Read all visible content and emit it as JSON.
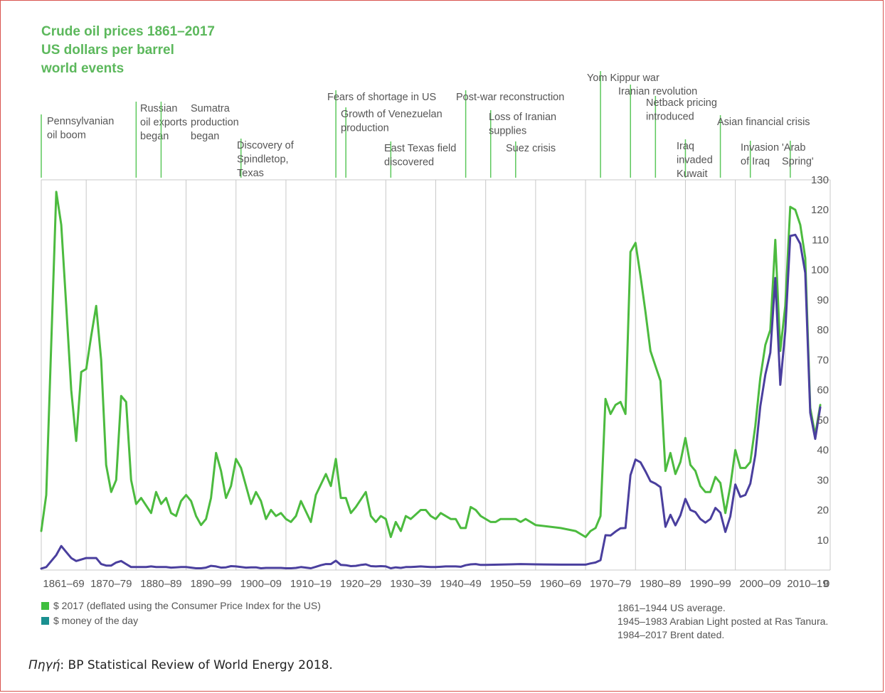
{
  "title_lines": [
    "Crude oil prices 1861–2017",
    "US dollars per barrel",
    "world events"
  ],
  "legend": [
    {
      "label": "$ 2017 (deflated using the Consumer Price Index for the US)",
      "color": "#3fbf3f"
    },
    {
      "label": "$ money of the day",
      "color": "#1a9090"
    }
  ],
  "notes": [
    "1861–1944 US average.",
    "1945–1983 Arabian Light posted at Ras Tanura.",
    "1984–2017 Brent dated."
  ],
  "source": {
    "label": "Πηγή",
    "text": ": BP Statistical Review of World Energy 2018."
  },
  "chart_data": {
    "type": "line",
    "xlim": [
      1861,
      2019
    ],
    "ylim": [
      0,
      130
    ],
    "yticks": [
      10,
      20,
      30,
      40,
      50,
      60,
      70,
      80,
      90,
      100,
      110,
      120,
      130
    ],
    "y_zero_label": "0",
    "xtick_labels": [
      "1861–69",
      "1870–79",
      "1880–89",
      "1890–99",
      "1900–09",
      "1910–19",
      "1920–29",
      "1930–39",
      "1940–49",
      "1950–59",
      "1960–69",
      "1970–79",
      "1980–89",
      "1990–99",
      "2000–09",
      "2010–19"
    ],
    "series": [
      {
        "name": "$ 2017 (deflated using the Consumer Price Index for the US)",
        "color": "#4cbb3f",
        "points": [
          [
            1861,
            13
          ],
          [
            1862,
            25
          ],
          [
            1864,
            126
          ],
          [
            1865,
            115
          ],
          [
            1866,
            88
          ],
          [
            1867,
            60
          ],
          [
            1868,
            43
          ],
          [
            1869,
            66
          ],
          [
            1870,
            67
          ],
          [
            1871,
            78
          ],
          [
            1872,
            88
          ],
          [
            1873,
            70
          ],
          [
            1874,
            35
          ],
          [
            1875,
            26
          ],
          [
            1876,
            30
          ],
          [
            1877,
            58
          ],
          [
            1878,
            56
          ],
          [
            1879,
            30
          ],
          [
            1880,
            22
          ],
          [
            1881,
            24
          ],
          [
            1883,
            19
          ],
          [
            1884,
            26
          ],
          [
            1885,
            22
          ],
          [
            1886,
            24
          ],
          [
            1887,
            19
          ],
          [
            1888,
            18
          ],
          [
            1889,
            23
          ],
          [
            1890,
            25
          ],
          [
            1891,
            23
          ],
          [
            1892,
            18
          ],
          [
            1893,
            15
          ],
          [
            1894,
            17
          ],
          [
            1895,
            24
          ],
          [
            1896,
            39
          ],
          [
            1897,
            33
          ],
          [
            1898,
            24
          ],
          [
            1899,
            28
          ],
          [
            1900,
            37
          ],
          [
            1901,
            34
          ],
          [
            1903,
            22
          ],
          [
            1904,
            26
          ],
          [
            1905,
            23
          ],
          [
            1906,
            17
          ],
          [
            1907,
            20
          ],
          [
            1908,
            18
          ],
          [
            1909,
            19
          ],
          [
            1910,
            17
          ],
          [
            1911,
            16
          ],
          [
            1912,
            18
          ],
          [
            1913,
            23
          ],
          [
            1915,
            16
          ],
          [
            1916,
            25
          ],
          [
            1918,
            32
          ],
          [
            1919,
            28
          ],
          [
            1920,
            37
          ],
          [
            1921,
            24
          ],
          [
            1922,
            24
          ],
          [
            1923,
            19
          ],
          [
            1924,
            21
          ],
          [
            1926,
            26
          ],
          [
            1927,
            18
          ],
          [
            1928,
            16
          ],
          [
            1929,
            18
          ],
          [
            1930,
            17
          ],
          [
            1931,
            11
          ],
          [
            1932,
            16
          ],
          [
            1933,
            13
          ],
          [
            1934,
            18
          ],
          [
            1935,
            17
          ],
          [
            1937,
            20
          ],
          [
            1938,
            20
          ],
          [
            1939,
            18
          ],
          [
            1940,
            17
          ],
          [
            1941,
            19
          ],
          [
            1943,
            17
          ],
          [
            1944,
            17
          ],
          [
            1945,
            14
          ],
          [
            1946,
            14
          ],
          [
            1947,
            21
          ],
          [
            1948,
            20
          ],
          [
            1949,
            18
          ],
          [
            1951,
            16
          ],
          [
            1952,
            16
          ],
          [
            1953,
            17
          ],
          [
            1955,
            17
          ],
          [
            1956,
            17
          ],
          [
            1957,
            16
          ],
          [
            1958,
            17
          ],
          [
            1959,
            16
          ],
          [
            1960,
            15
          ],
          [
            1965,
            14
          ],
          [
            1968,
            13
          ],
          [
            1970,
            11
          ],
          [
            1971,
            13
          ],
          [
            1972,
            14
          ],
          [
            1973,
            18
          ],
          [
            1974,
            57
          ],
          [
            1975,
            52
          ],
          [
            1976,
            55
          ],
          [
            1977,
            56
          ],
          [
            1978,
            52
          ],
          [
            1979,
            106
          ],
          [
            1980,
            109
          ],
          [
            1981,
            98
          ],
          [
            1982,
            86
          ],
          [
            1983,
            73
          ],
          [
            1984,
            68
          ],
          [
            1985,
            63
          ],
          [
            1986,
            33
          ],
          [
            1987,
            39
          ],
          [
            1988,
            32
          ],
          [
            1989,
            36
          ],
          [
            1990,
            44
          ],
          [
            1991,
            35
          ],
          [
            1992,
            33
          ],
          [
            1993,
            28
          ],
          [
            1994,
            26
          ],
          [
            1995,
            26
          ],
          [
            1996,
            31
          ],
          [
            1997,
            29
          ],
          [
            1998,
            19
          ],
          [
            1999,
            28
          ],
          [
            2000,
            40
          ],
          [
            2001,
            34
          ],
          [
            2002,
            34
          ],
          [
            2003,
            36
          ],
          [
            2004,
            48
          ],
          [
            2005,
            64
          ],
          [
            2006,
            75
          ],
          [
            2007,
            80
          ],
          [
            2008,
            110
          ],
          [
            2009,
            73
          ],
          [
            2010,
            88
          ],
          [
            2011,
            121
          ],
          [
            2012,
            120
          ],
          [
            2013,
            115
          ],
          [
            2014,
            104
          ],
          [
            2015,
            54
          ],
          [
            2016,
            45
          ],
          [
            2017,
            55
          ]
        ]
      },
      {
        "name": "$ money of the day",
        "color": "#4a3f9e",
        "points": [
          [
            1861,
            0.5
          ],
          [
            1862,
            1
          ],
          [
            1864,
            5
          ],
          [
            1865,
            8
          ],
          [
            1866,
            6
          ],
          [
            1867,
            4
          ],
          [
            1868,
            3
          ],
          [
            1869,
            3.5
          ],
          [
            1870,
            4
          ],
          [
            1871,
            4
          ],
          [
            1872,
            4
          ],
          [
            1873,
            2
          ],
          [
            1874,
            1.5
          ],
          [
            1875,
            1.5
          ],
          [
            1876,
            2.5
          ],
          [
            1877,
            3
          ],
          [
            1878,
            2
          ],
          [
            1879,
            1
          ],
          [
            1880,
            1
          ],
          [
            1881,
            1
          ],
          [
            1882,
            1
          ],
          [
            1883,
            1.2
          ],
          [
            1884,
            1
          ],
          [
            1885,
            1
          ],
          [
            1886,
            1
          ],
          [
            1887,
            0.8
          ],
          [
            1888,
            0.9
          ],
          [
            1889,
            1
          ],
          [
            1890,
            1
          ],
          [
            1891,
            0.8
          ],
          [
            1892,
            0.6
          ],
          [
            1893,
            0.6
          ],
          [
            1894,
            0.8
          ],
          [
            1895,
            1.4
          ],
          [
            1896,
            1.2
          ],
          [
            1897,
            0.8
          ],
          [
            1898,
            0.9
          ],
          [
            1899,
            1.3
          ],
          [
            1900,
            1.2
          ],
          [
            1901,
            1
          ],
          [
            1902,
            0.8
          ],
          [
            1903,
            0.9
          ],
          [
            1904,
            0.9
          ],
          [
            1905,
            0.6
          ],
          [
            1906,
            0.7
          ],
          [
            1907,
            0.7
          ],
          [
            1908,
            0.7
          ],
          [
            1909,
            0.7
          ],
          [
            1910,
            0.6
          ],
          [
            1911,
            0.6
          ],
          [
            1912,
            0.7
          ],
          [
            1913,
            1
          ],
          [
            1914,
            0.8
          ],
          [
            1915,
            0.6
          ],
          [
            1916,
            1.1
          ],
          [
            1917,
            1.6
          ],
          [
            1918,
            2
          ],
          [
            1919,
            2
          ],
          [
            1920,
            3.1
          ],
          [
            1921,
            1.7
          ],
          [
            1922,
            1.6
          ],
          [
            1923,
            1.3
          ],
          [
            1924,
            1.4
          ],
          [
            1925,
            1.7
          ],
          [
            1926,
            1.9
          ],
          [
            1927,
            1.3
          ],
          [
            1928,
            1.2
          ],
          [
            1929,
            1.3
          ],
          [
            1930,
            1.2
          ],
          [
            1931,
            0.6
          ],
          [
            1932,
            0.9
          ],
          [
            1933,
            0.7
          ],
          [
            1934,
            1
          ],
          [
            1935,
            1
          ],
          [
            1936,
            1.1
          ],
          [
            1937,
            1.2
          ],
          [
            1938,
            1.1
          ],
          [
            1939,
            1
          ],
          [
            1940,
            1
          ],
          [
            1941,
            1.1
          ],
          [
            1942,
            1.2
          ],
          [
            1943,
            1.2
          ],
          [
            1944,
            1.2
          ],
          [
            1945,
            1.1
          ],
          [
            1946,
            1.6
          ],
          [
            1947,
            1.9
          ],
          [
            1948,
            2
          ],
          [
            1949,
            1.7
          ],
          [
            1950,
            1.7
          ],
          [
            1955,
            1.9
          ],
          [
            1957,
            2
          ],
          [
            1960,
            1.9
          ],
          [
            1965,
            1.8
          ],
          [
            1969,
            1.8
          ],
          [
            1970,
            1.8
          ],
          [
            1971,
            2.2
          ],
          [
            1972,
            2.5
          ],
          [
            1973,
            3.3
          ],
          [
            1974,
            11.6
          ],
          [
            1975,
            11.5
          ],
          [
            1976,
            12.8
          ],
          [
            1977,
            13.9
          ],
          [
            1978,
            14
          ],
          [
            1979,
            31.6
          ],
          [
            1980,
            36.8
          ],
          [
            1981,
            35.9
          ],
          [
            1982,
            32.9
          ],
          [
            1983,
            29.6
          ],
          [
            1984,
            28.8
          ],
          [
            1985,
            27.6
          ],
          [
            1986,
            14.4
          ],
          [
            1987,
            18.4
          ],
          [
            1988,
            14.9
          ],
          [
            1989,
            18.2
          ],
          [
            1990,
            23.7
          ],
          [
            1991,
            20
          ],
          [
            1992,
            19.3
          ],
          [
            1993,
            17
          ],
          [
            1994,
            15.8
          ],
          [
            1995,
            17
          ],
          [
            1996,
            20.7
          ],
          [
            1997,
            19.1
          ],
          [
            1998,
            12.7
          ],
          [
            1999,
            17.9
          ],
          [
            2000,
            28.5
          ],
          [
            2001,
            24.4
          ],
          [
            2002,
            25
          ],
          [
            2003,
            28.8
          ],
          [
            2004,
            38.3
          ],
          [
            2005,
            54.5
          ],
          [
            2006,
            65.1
          ],
          [
            2007,
            72.4
          ],
          [
            2008,
            97.3
          ],
          [
            2009,
            61.7
          ],
          [
            2010,
            79.5
          ],
          [
            2011,
            111.3
          ],
          [
            2012,
            111.7
          ],
          [
            2013,
            108.7
          ],
          [
            2014,
            99
          ],
          [
            2015,
            52.4
          ],
          [
            2016,
            43.7
          ],
          [
            2017,
            54.2
          ]
        ]
      }
    ],
    "events": [
      {
        "label": [
          "Pennsylvanian",
          "oil boom"
        ],
        "x": 1861
      },
      {
        "label": [
          "Russian",
          "oil exports",
          "began"
        ],
        "x": 1880
      },
      {
        "label": [
          "Sumatra",
          "production",
          "began"
        ],
        "x": 1885
      },
      {
        "label": [
          "Discovery of",
          "Spindletop,",
          "Texas"
        ],
        "x": 1901
      },
      {
        "label": [
          "Fears of shortage in US"
        ],
        "x": 1920
      },
      {
        "label": [
          "Growth of Venezuelan",
          "production"
        ],
        "x": 1922
      },
      {
        "label": [
          "East Texas field",
          "discovered"
        ],
        "x": 1931
      },
      {
        "label": [
          "Post-war reconstruction"
        ],
        "x": 1946
      },
      {
        "label": [
          "Loss of Iranian",
          "supplies"
        ],
        "x": 1951
      },
      {
        "label": [
          "Suez crisis"
        ],
        "x": 1956
      },
      {
        "label": [
          "Yom Kippur war"
        ],
        "x": 1973
      },
      {
        "label": [
          "Iranian revolution"
        ],
        "x": 1979
      },
      {
        "label": [
          "Netback pricing",
          "introduced"
        ],
        "x": 1984
      },
      {
        "label": [
          "Iraq",
          "invaded",
          "Kuwait"
        ],
        "x": 1990
      },
      {
        "label": [
          "Asian financial crisis"
        ],
        "x": 1997
      },
      {
        "label": [
          "Invasion",
          "of Iraq"
        ],
        "x": 2003
      },
      {
        "label": [
          "'Arab",
          "Spring'"
        ],
        "x": 2011
      }
    ]
  }
}
